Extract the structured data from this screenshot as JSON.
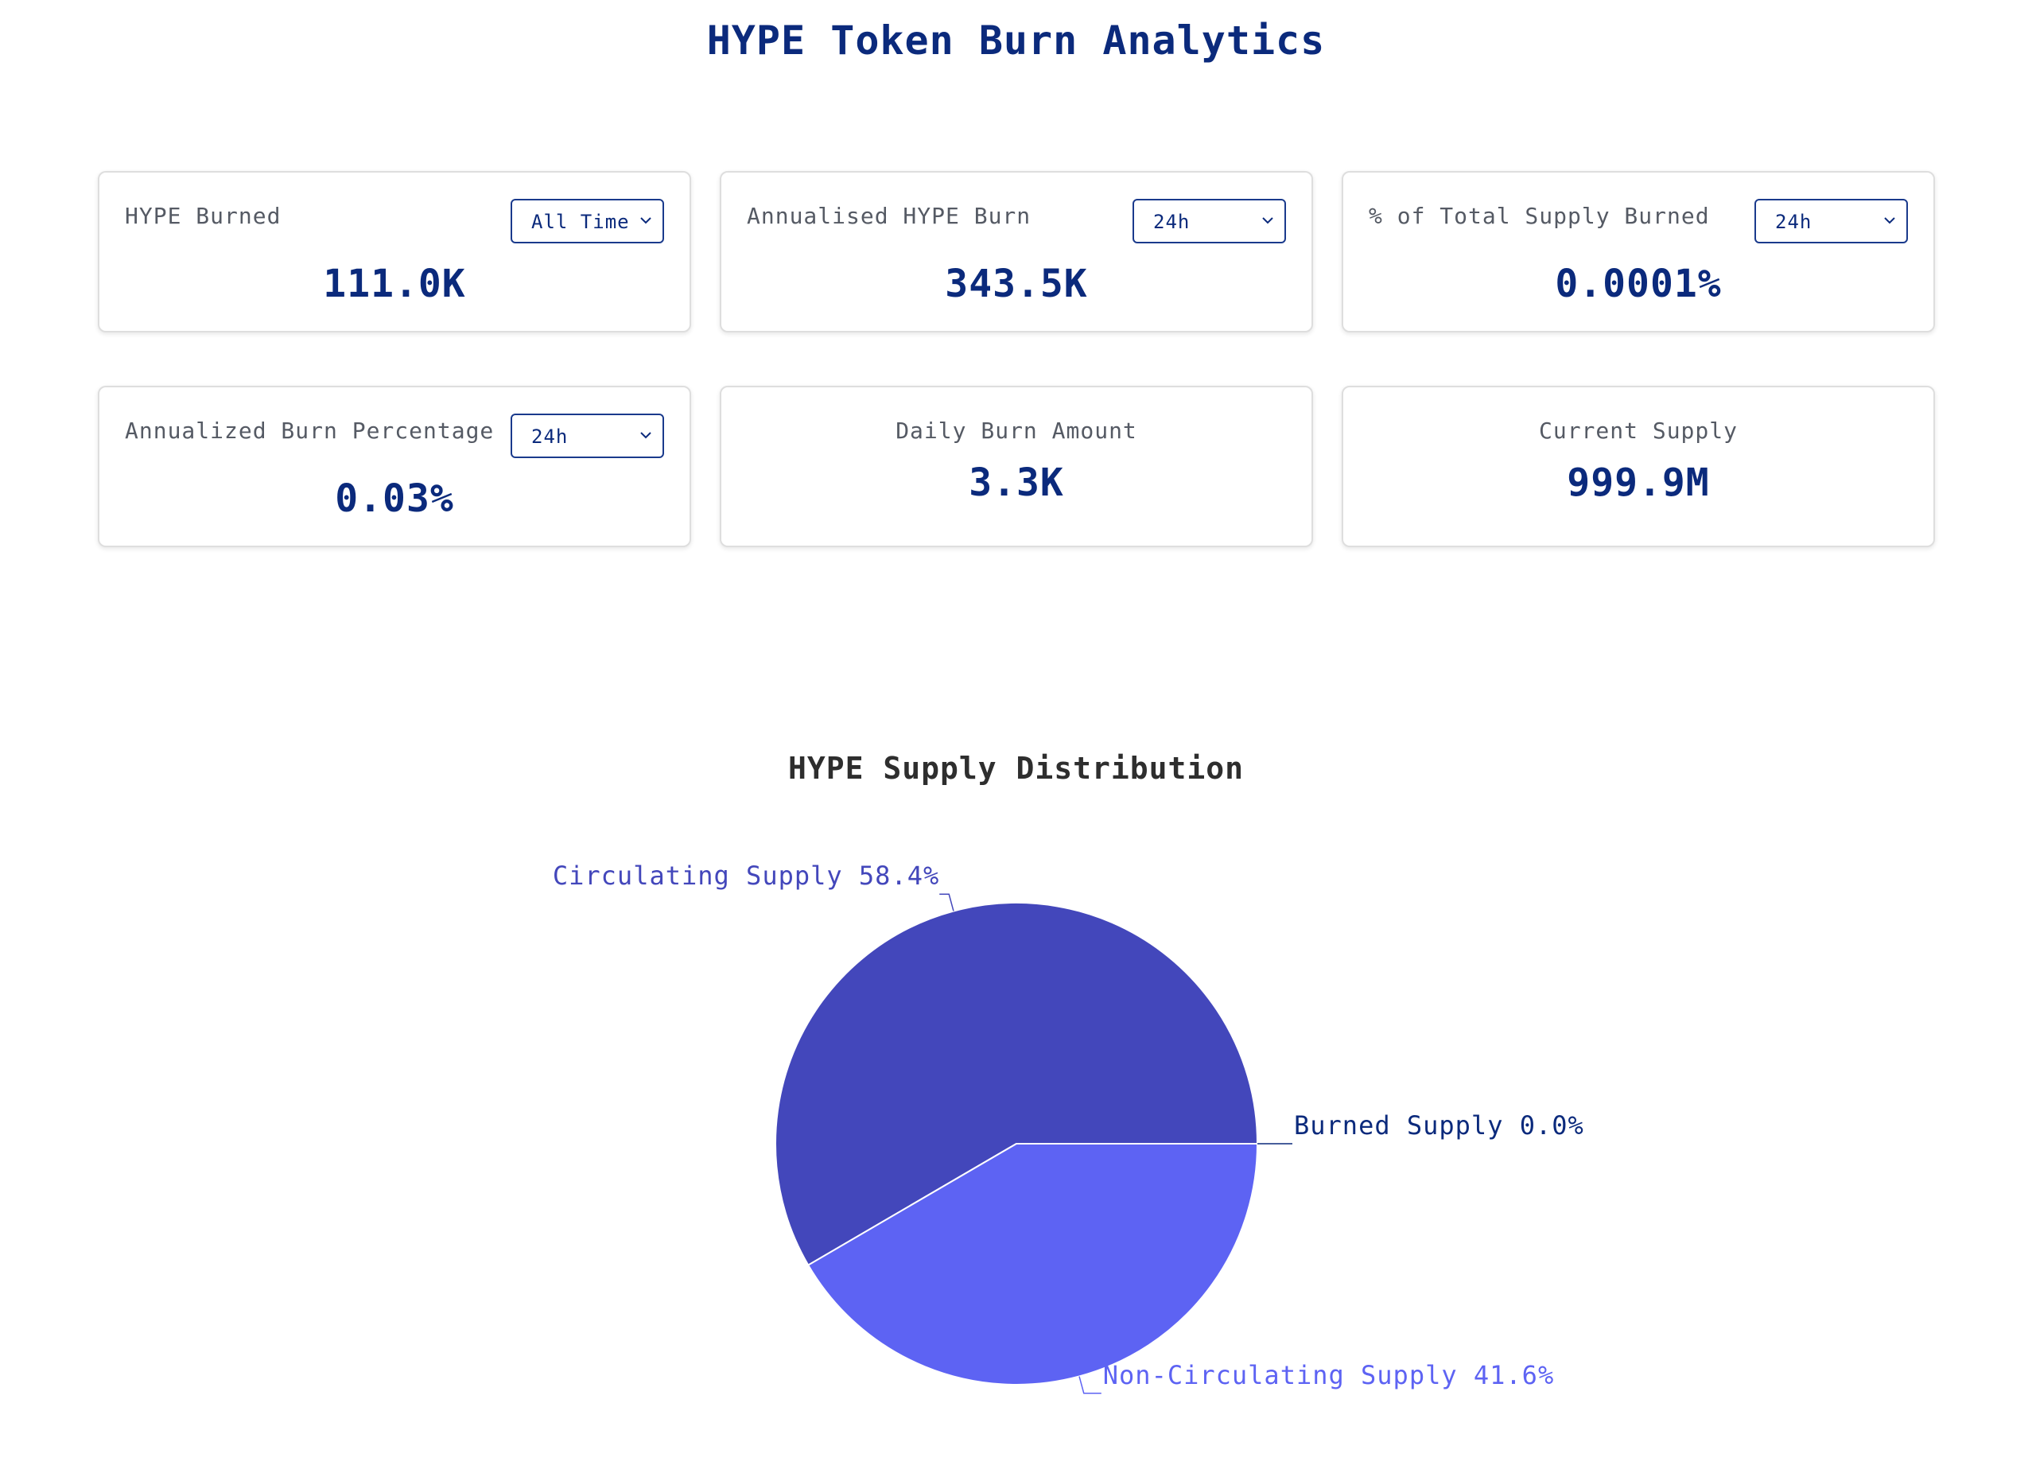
{
  "header": {
    "title": "HYPE Token Burn Analytics"
  },
  "cards": [
    {
      "label": "HYPE Burned",
      "value": "111.0K",
      "select": "All Time"
    },
    {
      "label": "Annualised HYPE Burn",
      "value": "343.5K",
      "select": "24h"
    },
    {
      "label": "% of Total Supply Burned",
      "value": "0.0001%",
      "select": "24h"
    },
    {
      "label": "Annualized Burn Percentage",
      "value": "0.03%",
      "select": "24h"
    },
    {
      "label": "Daily Burn Amount",
      "value": "3.3K"
    },
    {
      "label": "Current Supply",
      "value": "999.9M"
    }
  ],
  "chart_data": {
    "type": "pie",
    "title": "HYPE Supply Distribution",
    "slices": [
      {
        "name": "Circulating Supply",
        "value": 58.4,
        "label": "Circulating Supply 58.4%",
        "color": "#4347bb"
      },
      {
        "name": "Non-Circulating Supply",
        "value": 41.6,
        "label": "Non-Circulating Supply 41.6%",
        "color": "#5d63f3"
      },
      {
        "name": "Burned Supply",
        "value": 0.0,
        "label": "Burned Supply 0.0%",
        "color": "#0b2a7c"
      }
    ]
  },
  "colors": {
    "primary_text": "#0b2a7c",
    "label_text": "#555a64",
    "card_border": "#dedede"
  }
}
